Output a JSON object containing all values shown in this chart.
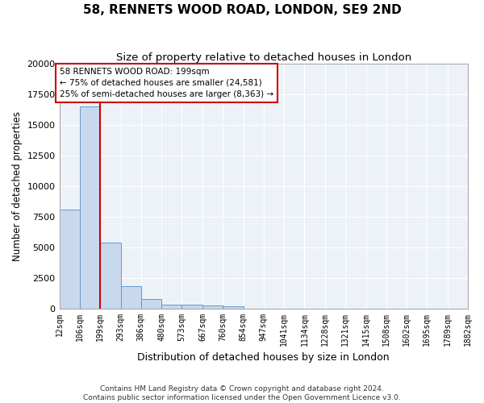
{
  "title": "58, RENNETS WOOD ROAD, LONDON, SE9 2ND",
  "subtitle": "Size of property relative to detached houses in London",
  "xlabel": "Distribution of detached houses by size in London",
  "ylabel": "Number of detached properties",
  "bar_color": "#c8d9ee",
  "bar_edge_color": "#6699cc",
  "bins": [
    12,
    106,
    199,
    293,
    386,
    480,
    573,
    667,
    760,
    854,
    947,
    1041,
    1134,
    1228,
    1321,
    1415,
    1508,
    1602,
    1695,
    1789,
    1882
  ],
  "counts": [
    8100,
    16500,
    5350,
    1850,
    750,
    330,
    280,
    230,
    200,
    0,
    0,
    0,
    0,
    0,
    0,
    0,
    0,
    0,
    0,
    0
  ],
  "property_size": 199,
  "annotation_text": "58 RENNETS WOOD ROAD: 199sqm\n← 75% of detached houses are smaller (24,581)\n25% of semi-detached houses are larger (8,363) →",
  "annotation_box_color": "#ffffff",
  "annotation_box_edge": "#cc0000",
  "vline_color": "#cc0000",
  "footer_line1": "Contains HM Land Registry data © Crown copyright and database right 2024.",
  "footer_line2": "Contains public sector information licensed under the Open Government Licence v3.0.",
  "ylim": [
    0,
    20000
  ],
  "background_color": "#edf2f9",
  "grid_color": "#ffffff",
  "spine_color": "#aaaaaa",
  "tick_label_fontsize": 7,
  "title_fontsize": 11,
  "subtitle_fontsize": 9.5,
  "xlabel_fontsize": 9,
  "ylabel_fontsize": 8.5,
  "footer_fontsize": 6.5
}
